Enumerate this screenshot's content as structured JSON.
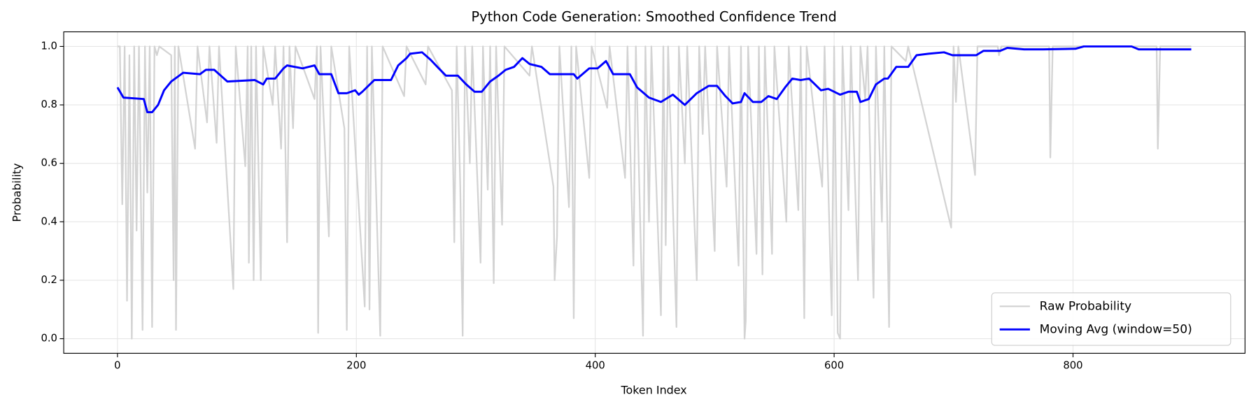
{
  "chart_data": {
    "type": "line",
    "title": "Python Code Generation: Smoothed Confidence Trend",
    "xlabel": "Token Index",
    "ylabel": "Probability",
    "xlim": [
      -45,
      944
    ],
    "ylim": [
      -0.05,
      1.05
    ],
    "xticks": [
      0,
      200,
      400,
      600,
      800
    ],
    "yticks": [
      {
        "value": 0,
        "label": "0.0"
      },
      {
        "value": 0.2,
        "label": "0.2"
      },
      {
        "value": 0.4,
        "label": "0.4"
      },
      {
        "value": 0.6,
        "label": "0.6"
      },
      {
        "value": 0.8,
        "label": "0.8"
      },
      {
        "value": 1,
        "label": "1.0"
      }
    ],
    "grid": true,
    "legend": "lower right",
    "series": [
      {
        "name": "Raw Probability",
        "color": "#d3d3d3",
        "x": [
          0,
          2,
          4,
          6,
          8,
          10,
          12,
          14,
          16,
          18,
          21,
          23,
          25,
          27,
          29,
          31,
          33,
          35,
          45,
          47,
          48,
          49,
          51,
          65,
          67,
          75,
          77,
          83,
          85,
          97,
          99,
          107,
          109,
          110,
          112,
          114,
          116,
          120,
          122,
          130,
          132,
          137,
          139,
          142,
          144,
          147,
          149,
          165,
          167,
          168,
          170,
          177,
          179,
          190,
          192,
          194,
          205,
          207,
          209,
          211,
          213,
          220,
          222,
          240,
          242,
          258,
          260,
          280,
          282,
          284,
          287,
          289,
          291,
          295,
          297,
          304,
          306,
          310,
          312,
          315,
          317,
          322,
          324,
          345,
          347,
          365,
          366,
          368,
          370,
          378,
          380,
          382,
          384,
          395,
          397,
          410,
          412,
          425,
          427,
          432,
          434,
          440,
          442,
          445,
          447,
          455,
          457,
          459,
          461,
          468,
          470,
          475,
          477,
          485,
          487,
          490,
          492,
          500,
          502,
          510,
          512,
          520,
          522,
          525,
          526,
          528,
          535,
          537,
          540,
          542,
          548,
          550,
          560,
          562,
          570,
          572,
          575,
          577,
          590,
          592,
          598,
          600,
          603,
          605,
          607,
          612,
          614,
          620,
          622,
          626,
          628,
          633,
          635,
          640,
          642,
          646,
          648,
          660,
          662,
          698,
          700,
          702,
          704,
          718,
          720,
          737,
          738,
          740,
          780,
          781,
          783,
          870,
          871,
          873,
          899
        ],
        "values": [
          1,
          1,
          0.46,
          1,
          0.13,
          0.97,
          0,
          1,
          0.37,
          1,
          0.03,
          1,
          0.5,
          1,
          0.04,
          1,
          0.97,
          1,
          0.97,
          0.2,
          1,
          0.03,
          1,
          0.65,
          1,
          0.74,
          1,
          0.67,
          1,
          0.17,
          1,
          0.59,
          1,
          0.26,
          1,
          0.2,
          1,
          0.2,
          1,
          0.8,
          1,
          0.65,
          1,
          0.33,
          1,
          0.72,
          1,
          0.82,
          1,
          0.02,
          1,
          0.35,
          1,
          0.72,
          0.03,
          1,
          0.25,
          0.11,
          1,
          0.1,
          1,
          0.01,
          1,
          0.83,
          1,
          0.87,
          1,
          0.85,
          0.33,
          1,
          0.52,
          0.01,
          1,
          0.6,
          1,
          0.26,
          1,
          0.51,
          1,
          0.19,
          1,
          0.39,
          1,
          0.9,
          1,
          0.52,
          0.2,
          0.35,
          1,
          0.45,
          1,
          0.07,
          1,
          0.55,
          1,
          0.79,
          1,
          0.55,
          1,
          0.25,
          1,
          0.01,
          1,
          0.4,
          1,
          0.08,
          1,
          0.32,
          1,
          0.04,
          1,
          0.6,
          1,
          0.2,
          1,
          0.7,
          1,
          0.3,
          1,
          0.52,
          1,
          0.25,
          1,
          0,
          0.06,
          1,
          0.29,
          1,
          0.22,
          1,
          0.29,
          1,
          0.4,
          1,
          0.44,
          1,
          0.07,
          1,
          0.52,
          1,
          0.08,
          1,
          0.02,
          0,
          1,
          0.44,
          1,
          0.2,
          1,
          0.82,
          1,
          0.14,
          1,
          0.4,
          1,
          0.04,
          1,
          0.95,
          1,
          0.38,
          1,
          0.81,
          1,
          0.56,
          1,
          1,
          0.97,
          1,
          1,
          0.62,
          1,
          1,
          0.65,
          1,
          1
        ]
      },
      {
        "name": "Moving Avg (window=50)",
        "color": "#0000ff",
        "x": [
          0,
          5,
          22,
          25,
          29,
          34,
          39,
          45,
          55,
          69,
          74,
          81,
          92,
          115,
          122,
          125,
          132,
          139,
          142,
          155,
          165,
          169,
          179,
          185,
          192,
          199,
          202,
          205,
          215,
          229,
          235,
          242,
          245,
          255,
          262,
          269,
          275,
          285,
          292,
          299,
          305,
          312,
          319,
          325,
          332,
          339,
          345,
          355,
          362,
          382,
          385,
          395,
          402,
          409,
          415,
          429,
          435,
          445,
          455,
          465,
          475,
          485,
          495,
          502,
          509,
          515,
          522,
          525,
          532,
          539,
          545,
          552,
          559,
          565,
          572,
          579,
          589,
          595,
          605,
          612,
          619,
          622,
          629,
          635,
          642,
          645,
          652,
          662,
          669,
          679,
          692,
          699,
          719,
          725,
          739,
          745,
          759,
          775,
          802,
          809,
          849,
          855,
          899
        ],
        "values": [
          0.86,
          0.825,
          0.82,
          0.775,
          0.775,
          0.8,
          0.85,
          0.88,
          0.91,
          0.905,
          0.92,
          0.92,
          0.88,
          0.885,
          0.87,
          0.89,
          0.89,
          0.925,
          0.935,
          0.925,
          0.935,
          0.905,
          0.905,
          0.84,
          0.84,
          0.85,
          0.835,
          0.845,
          0.885,
          0.885,
          0.935,
          0.96,
          0.975,
          0.98,
          0.955,
          0.925,
          0.9,
          0.9,
          0.87,
          0.845,
          0.845,
          0.88,
          0.9,
          0.92,
          0.93,
          0.96,
          0.94,
          0.93,
          0.905,
          0.905,
          0.89,
          0.925,
          0.925,
          0.95,
          0.905,
          0.905,
          0.86,
          0.825,
          0.81,
          0.835,
          0.8,
          0.84,
          0.865,
          0.865,
          0.83,
          0.805,
          0.81,
          0.84,
          0.81,
          0.81,
          0.83,
          0.82,
          0.86,
          0.89,
          0.885,
          0.89,
          0.85,
          0.855,
          0.835,
          0.845,
          0.845,
          0.81,
          0.82,
          0.87,
          0.89,
          0.89,
          0.93,
          0.93,
          0.97,
          0.975,
          0.98,
          0.97,
          0.97,
          0.985,
          0.985,
          0.995,
          0.99,
          0.99,
          0.992,
          1,
          1,
          0.99,
          0.99
        ]
      }
    ]
  }
}
